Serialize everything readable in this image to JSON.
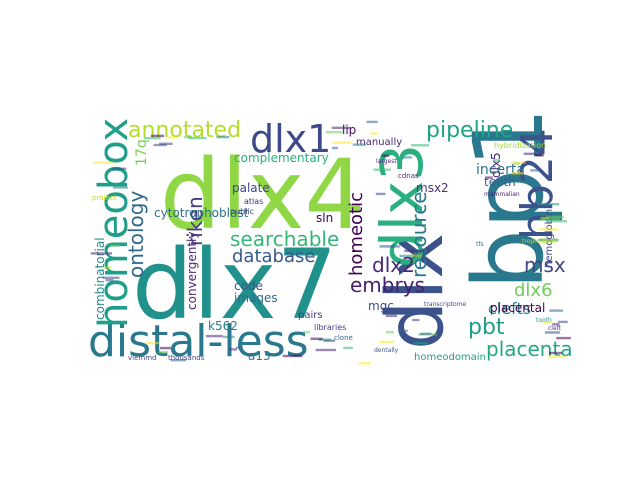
{
  "words": [
    {
      "text": "dlx4",
      "color": "#8fd744",
      "size": 96
    },
    {
      "text": "dlx7",
      "color": "#21918c",
      "size": 96
    },
    {
      "text": "bp1",
      "color": "#2a788e",
      "size": 96
    },
    {
      "text": "dlx",
      "color": "#3b528b",
      "size": 78
    },
    {
      "text": "dlx3",
      "color": "#2ab07f",
      "size": 58
    },
    {
      "text": "hb24",
      "color": "#3b528b",
      "size": 44
    },
    {
      "text": "distal-less",
      "color": "#2a788e",
      "size": 44
    },
    {
      "text": "homeobox",
      "color": "#1f9e89",
      "size": 40
    },
    {
      "text": "dlx1",
      "color": "#3e4989",
      "size": 38
    },
    {
      "text": "annotated",
      "color": "#b5de2b",
      "size": 22
    },
    {
      "text": "pipeline",
      "color": "#20a486",
      "size": 22
    },
    {
      "text": "searchable",
      "color": "#35b779",
      "size": 20
    },
    {
      "text": "database",
      "color": "#38598c",
      "size": 18
    },
    {
      "text": "ontology",
      "color": "#31688e",
      "size": 20
    },
    {
      "text": "riken",
      "color": "#443983",
      "size": 20
    },
    {
      "text": "resource",
      "color": "#2a788e",
      "size": 20
    },
    {
      "text": "homeotic",
      "color": "#440154",
      "size": 18
    },
    {
      "text": "dlx2",
      "color": "#482878",
      "size": 20
    },
    {
      "text": "embrys",
      "color": "#481f70",
      "size": 20
    },
    {
      "text": "msx",
      "color": "#404688",
      "size": 20
    },
    {
      "text": "dlx6",
      "color": "#6ece58",
      "size": 18
    },
    {
      "text": "pbt",
      "color": "#1f9e89",
      "size": 22
    },
    {
      "text": "placenta",
      "color": "#22a884",
      "size": 20
    },
    {
      "text": "clefts",
      "color": "#26828e",
      "size": 16
    },
    {
      "text": "hemoglobin",
      "color": "#3e4989",
      "size": 10
    },
    {
      "text": "dlx5",
      "color": "#472d7b",
      "size": 12
    },
    {
      "text": "teeth",
      "color": "#355f8d",
      "size": 12
    },
    {
      "text": "incerta",
      "color": "#2c728e",
      "size": 14
    },
    {
      "text": "msx2",
      "color": "#46337e",
      "size": 12
    },
    {
      "text": "complementary",
      "color": "#29af7f",
      "size": 12
    },
    {
      "text": "17q",
      "color": "#7ad151",
      "size": 14
    },
    {
      "text": "lip",
      "color": "#460a5d",
      "size": 12
    },
    {
      "text": "palate",
      "color": "#414487",
      "size": 12
    },
    {
      "text": "cytotrophoblast",
      "color": "#2d708e",
      "size": 12
    },
    {
      "text": "combinatorial",
      "color": "#238a8d",
      "size": 12
    },
    {
      "text": "convergently",
      "color": "#482475",
      "size": 12
    },
    {
      "text": "code",
      "color": "#3b528b",
      "size": 12
    },
    {
      "text": "images",
      "color": "#31688e",
      "size": 12
    },
    {
      "text": "k562",
      "color": "#287c8e",
      "size": 12
    },
    {
      "text": "a13",
      "color": "#2a788e",
      "size": 12
    },
    {
      "text": "homeodomain",
      "color": "#1fa187",
      "size": 10
    },
    {
      "text": "placental",
      "color": "#440154",
      "size": 12
    },
    {
      "text": "sln",
      "color": "#440154",
      "size": 12
    },
    {
      "text": "mgc",
      "color": "#3e4989",
      "size": 12
    },
    {
      "text": "pairs",
      "color": "#433e85",
      "size": 10
    },
    {
      "text": "manually",
      "color": "#482878",
      "size": 10
    },
    {
      "text": "atlas",
      "color": "#46327e",
      "size": 8
    },
    {
      "text": "public",
      "color": "#3f4788",
      "size": 8
    },
    {
      "text": "cdnas",
      "color": "#472c7a",
      "size": 7
    },
    {
      "text": "hybridization",
      "color": "#9fda3a",
      "size": 8
    },
    {
      "text": "trophoblast",
      "color": "#b8de29",
      "size": 6
    },
    {
      "text": "libraries",
      "color": "#453781",
      "size": 8
    },
    {
      "text": "clone",
      "color": "#31688e",
      "size": 7
    },
    {
      "text": "thousands",
      "color": "#404688",
      "size": 7
    },
    {
      "text": "vlemmd",
      "color": "#3e4a89",
      "size": 7
    },
    {
      "text": "dentally",
      "color": "#3b528b",
      "size": 6
    },
    {
      "text": "transcriptome",
      "color": "#3f4889",
      "size": 6
    },
    {
      "text": "largest",
      "color": "#482878",
      "size": 6
    },
    {
      "text": "project",
      "color": "#c2df23",
      "size": 7
    },
    {
      "text": "tfs",
      "color": "#2a788e",
      "size": 6
    },
    {
      "text": "tooth",
      "color": "#1f9a8a",
      "size": 6
    },
    {
      "text": "mammalian",
      "color": "#482173",
      "size": 6
    },
    {
      "text": "cleft",
      "color": "#46317e",
      "size": 6
    }
  ]
}
